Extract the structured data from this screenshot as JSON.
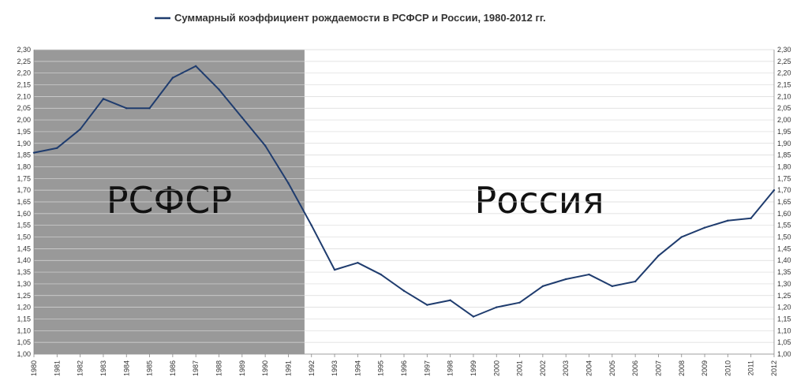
{
  "chart_data": {
    "type": "line",
    "title": "Суммарный коэффициент рождаемости в РСФСР и России, 1980-2012 гг.",
    "legend_position": "top",
    "grid": true,
    "ylim": [
      1.0,
      2.3
    ],
    "y_step": 0.05,
    "y_axis_right": true,
    "x": [
      1980,
      1981,
      1982,
      1983,
      1984,
      1985,
      1986,
      1987,
      1988,
      1989,
      1990,
      1991,
      1992,
      1993,
      1994,
      1995,
      1996,
      1997,
      1998,
      1999,
      2000,
      2001,
      2002,
      2003,
      2004,
      2005,
      2006,
      2007,
      2008,
      2009,
      2010,
      2011,
      2012
    ],
    "series": [
      {
        "name": "Суммарный коэффициент рождаемости в РСФСР и России, 1980-2012 гг.",
        "color": "#1f3c6e",
        "values": [
          1.86,
          1.88,
          1.96,
          2.09,
          2.05,
          2.05,
          2.18,
          2.23,
          2.13,
          2.01,
          1.89,
          1.73,
          1.55,
          1.36,
          1.39,
          1.34,
          1.27,
          1.21,
          1.23,
          1.16,
          1.2,
          1.22,
          1.29,
          1.32,
          1.34,
          1.29,
          1.31,
          1.42,
          1.5,
          1.54,
          1.57,
          1.58,
          1.7
        ]
      }
    ],
    "regions": [
      {
        "label": "РСФСР",
        "from": 1980,
        "to": 1991.7,
        "fill": "#999999"
      },
      {
        "label": "Россия",
        "from": 1991.7,
        "to": 2012,
        "fill": "#ffffff"
      }
    ]
  }
}
